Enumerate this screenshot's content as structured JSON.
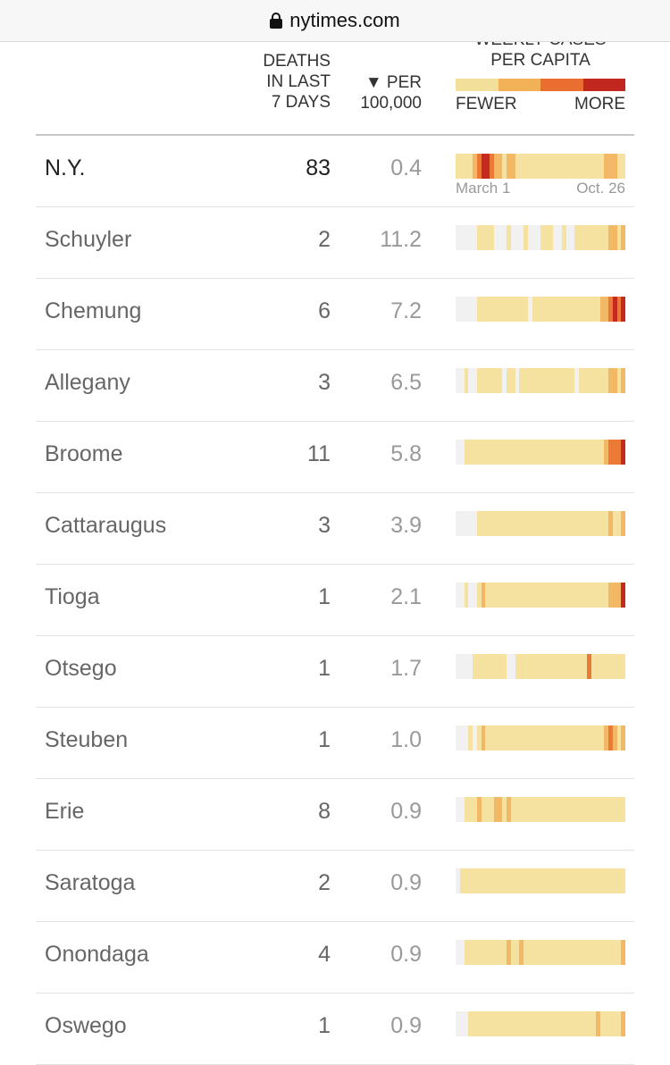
{
  "browser": {
    "url": "nytimes.com",
    "lock_icon": "lock-icon"
  },
  "header": {
    "deaths": "DEATHS\nIN LAST\n7 DAYS",
    "per": "▼ PER\n100,000",
    "weekly": "WEEKLY CASES\nPER CAPITA",
    "fewer": "FEWER",
    "more": "MORE",
    "legend_colors": [
      "#f2df99",
      "#f2b057",
      "#ea6e30",
      "#c1271f"
    ]
  },
  "strip_colors": {
    "0": "#f1f1f1",
    "1": "#f5e2a0",
    "2": "#f2b865",
    "3": "#ea7a36",
    "4": "#c52a20"
  },
  "state_dates": {
    "start": "March 1",
    "end": "Oct. 26"
  },
  "rows": [
    {
      "name": "N.Y.",
      "deaths": "83",
      "per": "0.4",
      "state": true,
      "weeks": [
        1,
        1,
        1,
        1,
        2,
        3,
        4,
        4,
        3,
        2,
        2,
        1,
        2,
        2,
        1,
        1,
        1,
        1,
        1,
        1,
        1,
        1,
        1,
        1,
        1,
        1,
        1,
        1,
        1,
        1,
        1,
        1,
        1,
        1,
        1,
        2,
        2,
        2,
        1,
        1
      ]
    },
    {
      "name": "Schuyler",
      "deaths": "2",
      "per": "11.2",
      "state": false,
      "weeks": [
        0,
        0,
        0,
        0,
        0,
        1,
        1,
        1,
        1,
        0,
        0,
        0,
        1,
        0,
        0,
        0,
        1,
        0,
        0,
        0,
        1,
        1,
        1,
        0,
        0,
        1,
        0,
        0,
        1,
        1,
        1,
        1,
        1,
        1,
        1,
        1,
        2,
        2,
        1,
        2
      ]
    },
    {
      "name": "Chemung",
      "deaths": "6",
      "per": "7.2",
      "state": false,
      "weeks": [
        0,
        0,
        0,
        0,
        0,
        1,
        1,
        1,
        1,
        1,
        1,
        1,
        1,
        1,
        1,
        1,
        1,
        0,
        1,
        1,
        1,
        1,
        1,
        1,
        1,
        1,
        1,
        1,
        1,
        1,
        1,
        1,
        1,
        1,
        2,
        2,
        3,
        4,
        3,
        4
      ]
    },
    {
      "name": "Allegany",
      "deaths": "3",
      "per": "6.5",
      "state": false,
      "weeks": [
        0,
        0,
        1,
        0,
        0,
        1,
        1,
        1,
        1,
        1,
        1,
        0,
        1,
        1,
        0,
        1,
        1,
        1,
        1,
        1,
        1,
        1,
        1,
        1,
        1,
        1,
        1,
        1,
        0,
        1,
        1,
        1,
        1,
        1,
        1,
        1,
        2,
        2,
        1,
        2
      ]
    },
    {
      "name": "Broome",
      "deaths": "11",
      "per": "5.8",
      "state": false,
      "weeks": [
        0,
        0,
        1,
        1,
        1,
        1,
        1,
        1,
        1,
        1,
        1,
        1,
        1,
        1,
        1,
        1,
        1,
        1,
        1,
        1,
        1,
        1,
        1,
        1,
        1,
        1,
        1,
        1,
        1,
        1,
        1,
        1,
        1,
        1,
        1,
        2,
        3,
        3,
        3,
        4
      ]
    },
    {
      "name": "Cattaraugus",
      "deaths": "3",
      "per": "3.9",
      "state": false,
      "weeks": [
        0,
        0,
        0,
        0,
        0,
        1,
        1,
        1,
        1,
        1,
        1,
        1,
        1,
        1,
        1,
        1,
        1,
        1,
        1,
        1,
        1,
        1,
        1,
        1,
        1,
        1,
        1,
        1,
        1,
        1,
        1,
        1,
        1,
        1,
        1,
        1,
        2,
        1,
        1,
        2
      ]
    },
    {
      "name": "Tioga",
      "deaths": "1",
      "per": "2.1",
      "state": false,
      "weeks": [
        0,
        0,
        1,
        0,
        0,
        1,
        2,
        1,
        1,
        1,
        1,
        1,
        1,
        1,
        1,
        1,
        1,
        1,
        1,
        1,
        1,
        1,
        1,
        1,
        1,
        1,
        1,
        1,
        1,
        1,
        1,
        1,
        1,
        1,
        1,
        1,
        2,
        2,
        2,
        4
      ]
    },
    {
      "name": "Otsego",
      "deaths": "1",
      "per": "1.7",
      "state": false,
      "weeks": [
        0,
        0,
        0,
        0,
        1,
        1,
        1,
        1,
        1,
        1,
        1,
        1,
        0,
        0,
        1,
        1,
        1,
        1,
        1,
        1,
        1,
        1,
        1,
        1,
        1,
        1,
        1,
        1,
        1,
        1,
        1,
        3,
        1,
        1,
        1,
        1,
        1,
        1,
        1,
        1
      ]
    },
    {
      "name": "Steuben",
      "deaths": "1",
      "per": "1.0",
      "state": false,
      "weeks": [
        0,
        0,
        0,
        1,
        0,
        1,
        2,
        1,
        1,
        1,
        1,
        1,
        1,
        1,
        1,
        1,
        1,
        1,
        1,
        1,
        1,
        1,
        1,
        1,
        1,
        1,
        1,
        1,
        1,
        1,
        1,
        1,
        1,
        1,
        1,
        2,
        3,
        2,
        1,
        2
      ]
    },
    {
      "name": "Erie",
      "deaths": "8",
      "per": "0.9",
      "state": false,
      "weeks": [
        0,
        0,
        1,
        1,
        1,
        2,
        1,
        1,
        1,
        2,
        2,
        1,
        2,
        1,
        1,
        1,
        1,
        1,
        1,
        1,
        1,
        1,
        1,
        1,
        1,
        1,
        1,
        1,
        1,
        1,
        1,
        1,
        1,
        1,
        1,
        1,
        1,
        1,
        1,
        1
      ]
    },
    {
      "name": "Saratoga",
      "deaths": "2",
      "per": "0.9",
      "state": false,
      "weeks": [
        0,
        1,
        1,
        1,
        1,
        1,
        1,
        1,
        1,
        1,
        1,
        1,
        1,
        1,
        1,
        1,
        1,
        1,
        1,
        1,
        1,
        1,
        1,
        1,
        1,
        1,
        1,
        1,
        1,
        1,
        1,
        1,
        1,
        1,
        1,
        1,
        1,
        1,
        1,
        1
      ]
    },
    {
      "name": "Onondaga",
      "deaths": "4",
      "per": "0.9",
      "state": false,
      "weeks": [
        0,
        0,
        1,
        1,
        1,
        1,
        1,
        1,
        1,
        1,
        1,
        1,
        2,
        1,
        1,
        2,
        1,
        1,
        1,
        1,
        1,
        1,
        1,
        1,
        1,
        1,
        1,
        1,
        1,
        1,
        1,
        1,
        1,
        1,
        1,
        1,
        1,
        1,
        1,
        2
      ]
    },
    {
      "name": "Oswego",
      "deaths": "1",
      "per": "0.9",
      "state": false,
      "weeks": [
        0,
        0,
        0,
        1,
        1,
        1,
        1,
        1,
        1,
        1,
        1,
        1,
        1,
        1,
        1,
        1,
        1,
        1,
        1,
        1,
        1,
        1,
        1,
        1,
        1,
        1,
        1,
        1,
        1,
        1,
        1,
        1,
        1,
        2,
        1,
        1,
        1,
        1,
        1,
        2
      ]
    }
  ]
}
